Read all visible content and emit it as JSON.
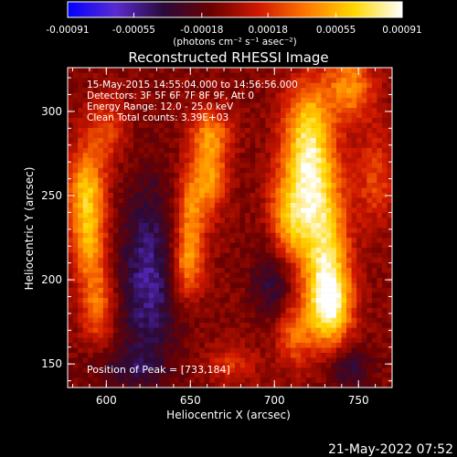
{
  "chart_data": {
    "type": "heatmap",
    "title": "Reconstructed RHESSI Image",
    "xlabel": "Heliocentric X (arcsec)",
    "ylabel": "Heliocentric Y (arcsec)",
    "xlim": [
      577,
      770
    ],
    "ylim": [
      136,
      326
    ],
    "xticks": [
      "600",
      "650",
      "700",
      "750"
    ],
    "yticks": [
      "150",
      "200",
      "250",
      "300"
    ],
    "colorbar": {
      "ticks": [
        "-0.00091",
        "-0.00055",
        "-0.00018",
        "0.00018",
        "0.00055",
        "0.00091"
      ],
      "units": "(photons cm⁻² s⁻¹ asec⁻²)",
      "range": [
        -0.00091,
        0.00091
      ],
      "colors": [
        "#0000ff",
        "#5a2bd0",
        "#2a0a3a",
        "#6a0000",
        "#d01800",
        "#ff7800",
        "#ffd800",
        "#ffffff"
      ]
    },
    "info_lines": [
      "15-May-2015 14:55:04.000 to 14:56:56.000",
      "Detectors: 3F 5F 6F 7F 8F 9F, Att 0",
      "Energy Range: 12.0 - 25.0 keV",
      "Clean     Total counts: 3.39E+03"
    ],
    "peak_label": "Position of Peak = [733,184]",
    "peak": [
      733,
      184
    ],
    "sources": [
      {
        "x": 733,
        "y": 184,
        "amp": 1.0,
        "sx": 9,
        "sy": 16
      },
      {
        "x": 730,
        "y": 215,
        "amp": 0.75,
        "sx": 10,
        "sy": 22
      },
      {
        "x": 722,
        "y": 255,
        "amp": 0.85,
        "sx": 12,
        "sy": 22
      },
      {
        "x": 720,
        "y": 292,
        "amp": 0.7,
        "sx": 10,
        "sy": 20
      },
      {
        "x": 745,
        "y": 315,
        "amp": 0.6,
        "sx": 10,
        "sy": 14
      },
      {
        "x": 708,
        "y": 232,
        "amp": 0.5,
        "sx": 8,
        "sy": 20
      },
      {
        "x": 712,
        "y": 168,
        "amp": 0.45,
        "sx": 8,
        "sy": 14
      },
      {
        "x": 662,
        "y": 262,
        "amp": 0.6,
        "sx": 7,
        "sy": 16
      },
      {
        "x": 650,
        "y": 240,
        "amp": 0.55,
        "sx": 6,
        "sy": 20
      },
      {
        "x": 648,
        "y": 208,
        "amp": 0.5,
        "sx": 7,
        "sy": 14
      },
      {
        "x": 662,
        "y": 288,
        "amp": 0.45,
        "sx": 9,
        "sy": 10
      },
      {
        "x": 588,
        "y": 253,
        "amp": 0.75,
        "sx": 8,
        "sy": 18
      },
      {
        "x": 590,
        "y": 220,
        "amp": 0.55,
        "sx": 7,
        "sy": 16
      },
      {
        "x": 595,
        "y": 185,
        "amp": 0.5,
        "sx": 7,
        "sy": 16
      },
      {
        "x": 600,
        "y": 290,
        "amp": 0.35,
        "sx": 9,
        "sy": 14
      },
      {
        "x": 760,
        "y": 260,
        "amp": 0.35,
        "sx": 8,
        "sy": 20
      },
      {
        "x": 675,
        "y": 150,
        "amp": 0.3,
        "sx": 10,
        "sy": 8
      },
      {
        "x": 625,
        "y": 200,
        "amp": -0.55,
        "sx": 12,
        "sy": 40
      },
      {
        "x": 700,
        "y": 200,
        "amp": -0.4,
        "sx": 9,
        "sy": 16
      },
      {
        "x": 745,
        "y": 148,
        "amp": -0.35,
        "sx": 9,
        "sy": 9
      },
      {
        "x": 610,
        "y": 148,
        "amp": -0.25,
        "sx": 14,
        "sy": 8
      }
    ]
  },
  "timestamp": "21-May-2022 07:52"
}
